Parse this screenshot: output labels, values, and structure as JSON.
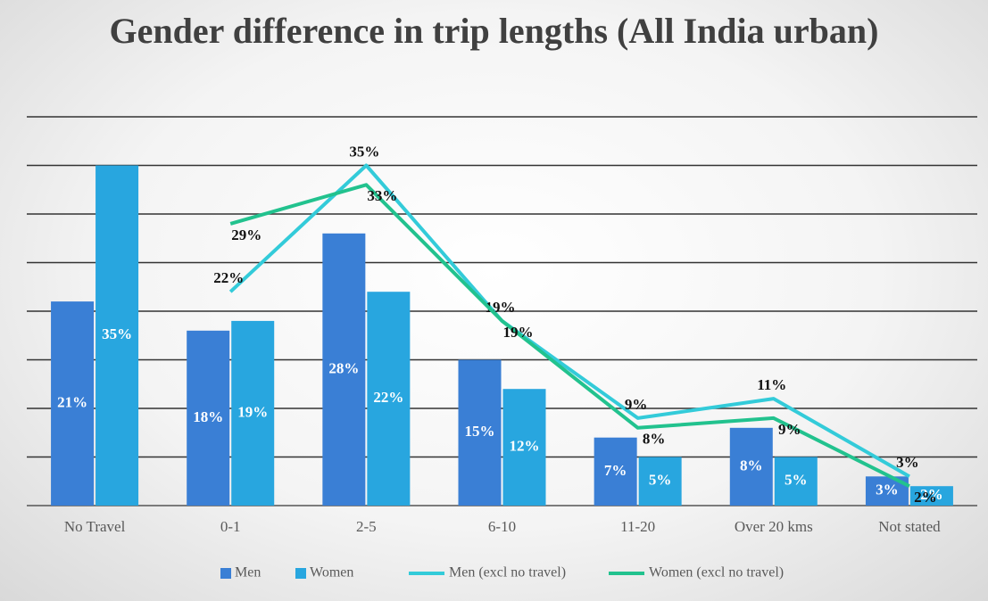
{
  "chart_data": {
    "type": "bar-line",
    "title": "Gender difference in trip lengths (All India urban)",
    "categories": [
      "No Travel",
      "0-1",
      "2-5",
      "6-10",
      "11-20",
      "Over 20 kms",
      "Not stated"
    ],
    "series": [
      {
        "name": "Men",
        "type": "bar",
        "color": "#3a7fd5",
        "values": [
          21,
          18,
          28,
          15,
          7,
          8,
          3
        ],
        "value_labels": [
          "21%",
          "18%",
          "28%",
          "15%",
          "7%",
          "8%",
          "3%"
        ]
      },
      {
        "name": "Women",
        "type": "bar",
        "color": "#28a6df",
        "values": [
          35,
          19,
          22,
          12,
          5,
          5,
          2
        ],
        "value_labels": [
          "35%",
          "19%",
          "22%",
          "12%",
          "5%",
          "5%",
          "2%"
        ]
      },
      {
        "name": "Men (excl no travel)",
        "type": "line",
        "color": "#33cbd9",
        "values": [
          null,
          22,
          35,
          19,
          9,
          11,
          3
        ],
        "value_labels": [
          null,
          "22%",
          "35%",
          "19%",
          "9%",
          "11%",
          "3%"
        ]
      },
      {
        "name": "Women (excl no travel)",
        "type": "line",
        "color": "#22c28e",
        "values": [
          null,
          29,
          33,
          19,
          8,
          9,
          2
        ],
        "value_labels": [
          null,
          "29%",
          "33%",
          "19%",
          "8%",
          "9%",
          "2%"
        ]
      }
    ],
    "ylim": [
      0,
      40
    ],
    "yticks": [
      0,
      5,
      10,
      15,
      20,
      25,
      30,
      35,
      40
    ],
    "grid": true,
    "legend": "bottom"
  }
}
